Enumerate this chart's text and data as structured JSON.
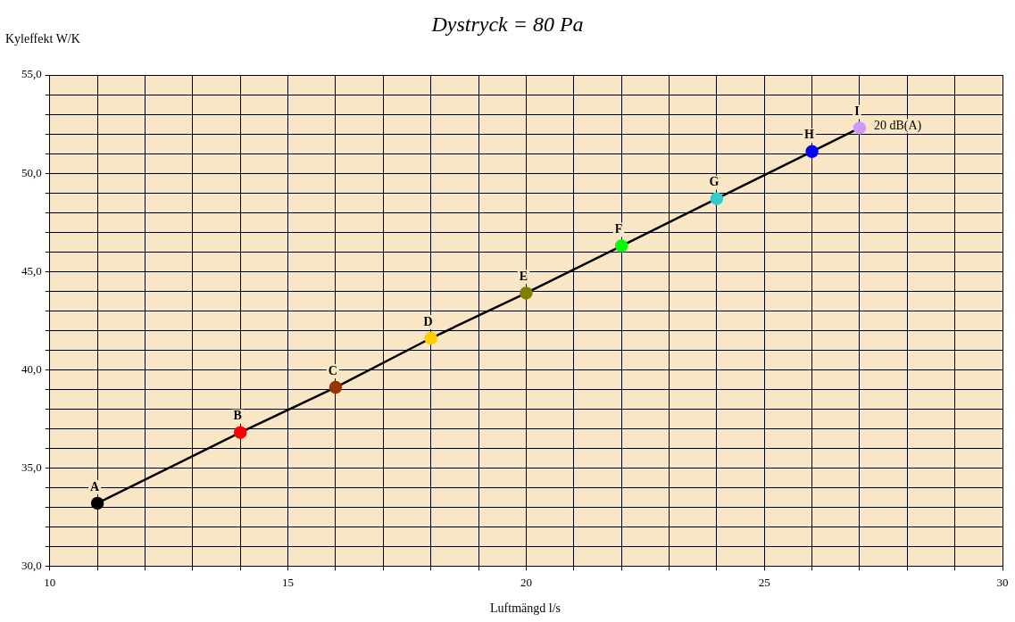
{
  "chart_data": {
    "type": "line",
    "title": "Dystryck = 80 Pa",
    "xlabel": "Luftmängd l/s",
    "ylabel": "Kyleffekt W/K",
    "x": [
      11,
      14,
      16,
      18,
      20,
      22,
      24,
      26,
      27
    ],
    "series": [
      {
        "color": "#000000",
        "colors": [
          "#000000",
          "#ff0000",
          "#993300",
          "#ffcc00",
          "#808000",
          "#00ff00",
          "#33cccc",
          "#0000ff",
          "#cc99ff"
        ],
        "values": [
          33.2,
          36.8,
          39.1,
          41.6,
          43.9,
          46.3,
          48.7,
          51.1,
          52.3
        ]
      }
    ],
    "xlim": [
      10,
      30
    ],
    "ylim": [
      30,
      55
    ],
    "xticks": [
      10,
      {
        "value": 11,
        "label": null
      },
      {
        "value": 12,
        "label": null
      },
      {
        "value": 13,
        "label": null
      },
      {
        "value": 14,
        "label": null
      },
      15,
      {
        "value": 16,
        "label": null
      },
      {
        "value": 17,
        "label": null
      },
      {
        "value": 18,
        "label": null
      },
      {
        "value": 19,
        "label": null
      },
      20,
      {
        "value": 21,
        "label": null
      },
      {
        "value": 22,
        "label": null
      },
      {
        "value": 23,
        "label": null
      },
      {
        "value": 24,
        "label": null
      },
      25,
      {
        "value": 26,
        "label": null
      },
      {
        "value": 27,
        "label": null
      },
      {
        "value": 28,
        "label": null
      },
      {
        "value": 29,
        "label": null
      },
      30
    ],
    "yticks": [
      {
        "value": 30,
        "label": "30,0"
      },
      {
        "value": 31,
        "label": null
      },
      {
        "value": 32,
        "label": null
      },
      {
        "value": 33,
        "label": null
      },
      {
        "value": 34,
        "label": null
      },
      {
        "value": 35,
        "label": "35,0"
      },
      {
        "value": 36,
        "label": null
      },
      {
        "value": 37,
        "label": null
      },
      {
        "value": 38,
        "label": null
      },
      {
        "value": 39,
        "label": null
      },
      {
        "value": 40,
        "label": "40,0"
      },
      {
        "value": 41,
        "label": null
      },
      {
        "value": 42,
        "label": null
      },
      {
        "value": 43,
        "label": null
      },
      {
        "value": 44,
        "label": null
      },
      {
        "value": 45,
        "label": "45,0"
      },
      {
        "value": 46,
        "label": null
      },
      {
        "value": 47,
        "label": null
      },
      {
        "value": 48,
        "label": null
      },
      {
        "value": 49,
        "label": null
      },
      {
        "value": 50,
        "label": "50,0"
      },
      {
        "value": 51,
        "label": null
      },
      {
        "value": 52,
        "label": null
      },
      {
        "value": 53,
        "label": null
      },
      {
        "value": 54,
        "label": null
      },
      {
        "value": 55,
        "label": "55,0"
      }
    ],
    "grid": true,
    "legend": false,
    "marker": "circle",
    "line_style": "solid",
    "annotations": [
      {
        "text": "A",
        "x": 11,
        "y": 33.2
      },
      {
        "text": "B",
        "x": 14,
        "y": 36.8
      },
      {
        "text": "C",
        "x": 16,
        "y": 39.1
      },
      {
        "text": "D",
        "x": 18,
        "y": 41.6
      },
      {
        "text": "E",
        "x": 20,
        "y": 43.9
      },
      {
        "text": "F",
        "x": 22,
        "y": 46.3
      },
      {
        "text": "G",
        "x": 24,
        "y": 48.7
      },
      {
        "text": "H",
        "x": 26,
        "y": 51.1
      },
      {
        "text": "I",
        "x": 27,
        "y": 52.3
      },
      {
        "text": "20 dB(A)",
        "x": 27,
        "y": 52.3
      }
    ]
  }
}
